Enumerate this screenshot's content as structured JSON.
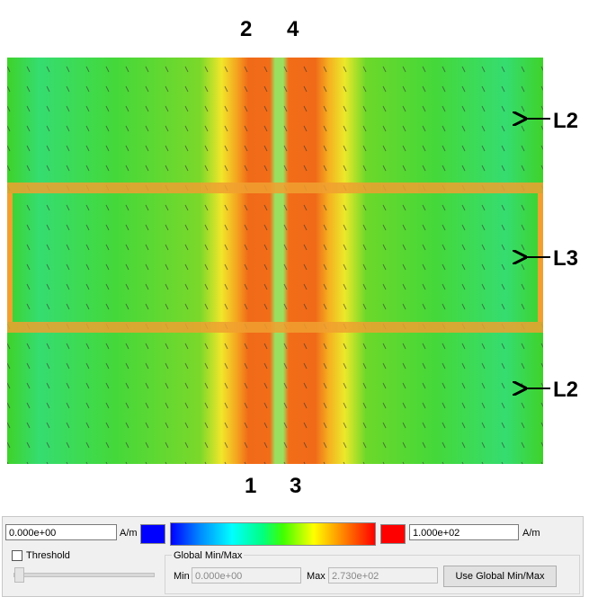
{
  "field_labels": {
    "top": [
      "2",
      "4"
    ],
    "bottom": [
      "1",
      "3"
    ],
    "right": [
      "L2",
      "L3",
      "L2"
    ]
  },
  "panel": {
    "min_value": "0.000e+00",
    "min_unit": "A/m",
    "max_value": "1.000e+02",
    "max_unit": "A/m",
    "threshold": "Threshold",
    "global_group": "Global Min/Max",
    "global_min_label": "Min",
    "global_min": "0.000e+00",
    "global_max_label": "Max",
    "global_max": "2.730e+02",
    "use_global_button": "Use Global Min/Max"
  }
}
